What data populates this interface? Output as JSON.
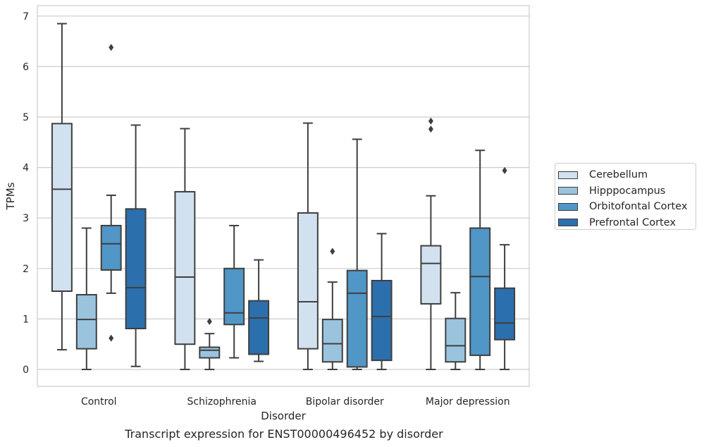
{
  "chart_data": {
    "type": "box",
    "xlabel": "Disorder",
    "ylabel": "TPMs",
    "ylim": [
      -0.34,
      7.2
    ],
    "yticks": [
      0,
      1,
      2,
      3,
      4,
      5,
      6,
      7
    ],
    "grid": true,
    "legend_position": "right",
    "categories": [
      "Control",
      "Schizophrenia",
      "Bipolar disorder",
      "Major depression"
    ],
    "series": [
      {
        "name": "Cerebellum",
        "color": "#d2e1f0",
        "boxes": [
          {
            "q1": 1.55,
            "median": 3.57,
            "q3": 4.87,
            "whisker_low": 0.39,
            "whisker_high": 6.85,
            "outliers": []
          },
          {
            "q1": 0.5,
            "median": 1.83,
            "q3": 3.52,
            "whisker_low": 0.0,
            "whisker_high": 4.77,
            "outliers": []
          },
          {
            "q1": 0.41,
            "median": 1.34,
            "q3": 3.1,
            "whisker_low": 0.0,
            "whisker_high": 4.88,
            "outliers": []
          },
          {
            "q1": 1.3,
            "median": 2.1,
            "q3": 2.45,
            "whisker_low": 0.0,
            "whisker_high": 3.44,
            "outliers": [
              4.92,
              4.76
            ]
          }
        ]
      },
      {
        "name": "Hipppocampus",
        "color": "#9ac3de",
        "boxes": [
          {
            "q1": 0.41,
            "median": 0.99,
            "q3": 1.48,
            "whisker_low": 0.0,
            "whisker_high": 2.8,
            "outliers": []
          },
          {
            "q1": 0.23,
            "median": 0.38,
            "q3": 0.44,
            "whisker_low": 0.0,
            "whisker_high": 0.71,
            "outliers": [
              0.95
            ]
          },
          {
            "q1": 0.15,
            "median": 0.51,
            "q3": 0.99,
            "whisker_low": 0.0,
            "whisker_high": 1.73,
            "outliers": [
              2.34
            ]
          },
          {
            "q1": 0.15,
            "median": 0.47,
            "q3": 1.01,
            "whisker_low": 0.0,
            "whisker_high": 1.52,
            "outliers": []
          }
        ]
      },
      {
        "name": "Orbitofontal Cortex",
        "color": "#5096c7",
        "boxes": [
          {
            "q1": 1.97,
            "median": 2.49,
            "q3": 2.85,
            "whisker_low": 1.51,
            "whisker_high": 3.45,
            "outliers": [
              6.38,
              0.62
            ]
          },
          {
            "q1": 0.89,
            "median": 1.12,
            "q3": 2.0,
            "whisker_low": 0.23,
            "whisker_high": 2.85,
            "outliers": []
          },
          {
            "q1": 0.05,
            "median": 1.51,
            "q3": 1.96,
            "whisker_low": 0.0,
            "whisker_high": 4.56,
            "outliers": []
          },
          {
            "q1": 0.28,
            "median": 1.84,
            "q3": 2.8,
            "whisker_low": 0.0,
            "whisker_high": 4.34,
            "outliers": []
          }
        ]
      },
      {
        "name": "Prefrontal Cortex",
        "color": "#2c6fad",
        "boxes": [
          {
            "q1": 0.81,
            "median": 1.62,
            "q3": 3.18,
            "whisker_low": 0.06,
            "whisker_high": 4.84,
            "outliers": []
          },
          {
            "q1": 0.3,
            "median": 1.02,
            "q3": 1.36,
            "whisker_low": 0.16,
            "whisker_high": 2.17,
            "outliers": []
          },
          {
            "q1": 0.18,
            "median": 1.05,
            "q3": 1.76,
            "whisker_low": 0.0,
            "whisker_high": 2.69,
            "outliers": []
          },
          {
            "q1": 0.59,
            "median": 0.92,
            "q3": 1.61,
            "whisker_low": 0.0,
            "whisker_high": 2.47,
            "outliers": [
              3.94
            ]
          }
        ]
      }
    ],
    "caption": "Transcript expression for ENST00000496452 by disorder"
  }
}
